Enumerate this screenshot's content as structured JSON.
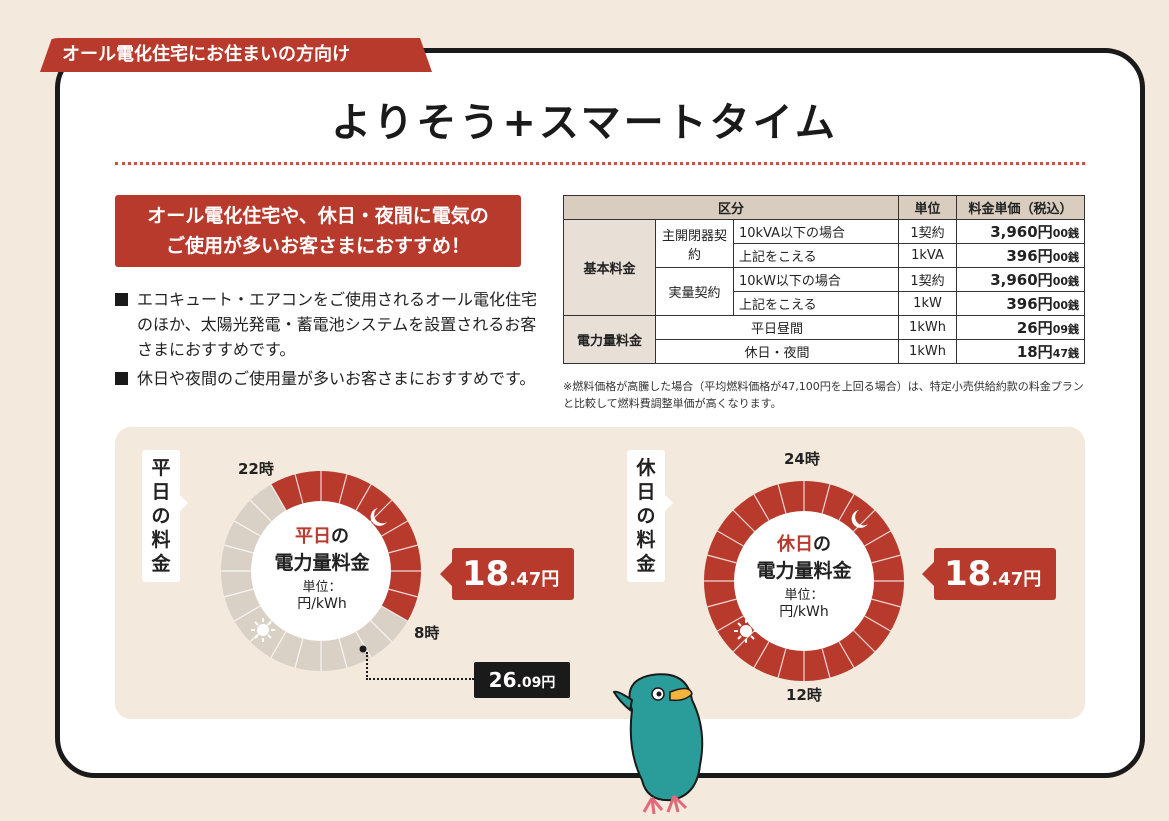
{
  "tag": "オール電化住宅にお住まいの方向け",
  "title": "よりそう+スマートタイム",
  "recommend": {
    "line1": "オール電化住宅や、休日・夜間に電気の",
    "line2": "ご使用が多いお客さまにおすすめ！"
  },
  "bullets": [
    "エコキュート・エアコンをご使用されるオール電化住宅のほか、太陽光発電・蓄電池システムを設置されるお客さまにおすすめです。",
    "休日や夜間のご使用量が多いお客さまにおすすめです。"
  ],
  "table": {
    "headers": [
      "区分",
      "単位",
      "料金単価（税込）"
    ],
    "basic_group": "基本料金",
    "main_breaker": "主開閉器契約",
    "actual": "実量契約",
    "energy_group": "電力量料金",
    "rows": [
      {
        "cond": "10kVA以下の場合",
        "unit": "1契約",
        "yen": "3,960円",
        "sen": "00銭"
      },
      {
        "cond": "上記をこえる",
        "unit": "1kVA",
        "yen": "396円",
        "sen": "00銭"
      },
      {
        "cond": "10kW以下の場合",
        "unit": "1契約",
        "yen": "3,960円",
        "sen": "00銭"
      },
      {
        "cond": "上記をこえる",
        "unit": "1kW",
        "yen": "396円",
        "sen": "00銭"
      },
      {
        "cond": "平日昼間",
        "unit": "1kWh",
        "yen": "26円",
        "sen": "09銭"
      },
      {
        "cond": "休日・夜間",
        "unit": "1kWh",
        "yen": "18円",
        "sen": "47銭"
      }
    ]
  },
  "note": "※燃料価格が高騰した場合（平均燃料価格が47,100円を上回る場合）は、特定小売供給約款の料金プランと比較して燃料費調整単価が高くなります。",
  "weekday": {
    "label": "平日の料金",
    "hour_top": "22時",
    "hour_right": "8時",
    "center_red": "平日",
    "center_rest": "の",
    "center_l2": "電力量料金",
    "unit_l1": "単位：",
    "unit_l2": "円/kWh",
    "price_big": "18",
    "price_small": ".47円",
    "day_big": "26",
    "day_small": ".09円"
  },
  "holiday": {
    "label": "休日の料金",
    "hour_top": "24時",
    "hour_bottom": "12時",
    "center_red": "休日",
    "center_rest": "の",
    "center_l2": "電力量料金",
    "unit_l1": "単位：",
    "unit_l2": "円/kWh",
    "price_big": "18",
    "price_small": ".47円"
  },
  "colors": {
    "accent": "#b83a2c",
    "grey": "#d9d1c6",
    "bird": "#2a9d9a"
  }
}
